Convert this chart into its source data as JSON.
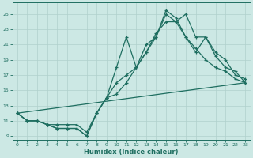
{
  "xlabel": "Humidex (Indice chaleur)",
  "xlim": [
    -0.5,
    23.5
  ],
  "ylim": [
    8.5,
    26.5
  ],
  "xticks": [
    0,
    1,
    2,
    3,
    4,
    5,
    6,
    7,
    8,
    9,
    10,
    11,
    12,
    13,
    14,
    15,
    16,
    17,
    18,
    19,
    20,
    21,
    22,
    23
  ],
  "yticks": [
    9,
    11,
    13,
    15,
    17,
    19,
    21,
    23,
    25
  ],
  "bg_color": "#cce8e4",
  "line_color": "#1e6e60",
  "grid_color": "#b0d0cc",
  "lines": [
    {
      "x": [
        0,
        1,
        2,
        3,
        4,
        5,
        6,
        7,
        8,
        9,
        10,
        11,
        12,
        13,
        14,
        15,
        16,
        17,
        18,
        19,
        20,
        21,
        22,
        23
      ],
      "y": [
        12,
        11,
        11,
        10.5,
        10,
        10,
        10,
        9,
        12,
        14,
        18,
        22,
        18,
        21,
        22,
        25.5,
        24.5,
        22,
        20.5,
        19,
        18,
        17.5,
        16.5,
        16
      ]
    },
    {
      "x": [
        0,
        1,
        2,
        3,
        4,
        5,
        6,
        7,
        8,
        9,
        10,
        11,
        12,
        13,
        14,
        15,
        16,
        17,
        18,
        19,
        20,
        21,
        22,
        23
      ],
      "y": [
        12,
        11,
        11,
        10.5,
        10.5,
        10.5,
        10.5,
        9.5,
        12,
        14,
        16,
        17,
        18,
        20,
        22.5,
        24,
        24,
        25,
        22,
        22,
        19.5,
        18,
        17.5,
        16
      ]
    },
    {
      "x": [
        0,
        1,
        2,
        3,
        4,
        5,
        6,
        7,
        8,
        9,
        10,
        11,
        12,
        13,
        14,
        15,
        16,
        17,
        18,
        19,
        20,
        21,
        22,
        23
      ],
      "y": [
        12,
        11,
        11,
        10.5,
        10,
        10,
        10,
        9,
        12,
        14,
        14.5,
        16,
        18,
        20,
        22,
        25,
        24,
        22,
        20,
        22,
        20,
        19,
        17,
        16.5
      ]
    },
    {
      "x": [
        0,
        23
      ],
      "y": [
        12,
        16
      ]
    }
  ]
}
